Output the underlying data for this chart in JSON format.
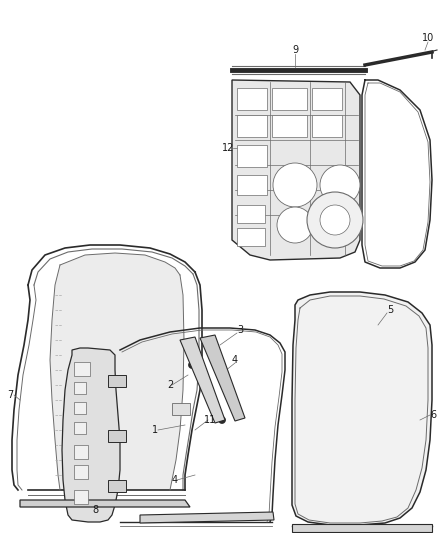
{
  "bg_color": "#ffffff",
  "line_color": "#6b6b6b",
  "dark_color": "#2a2a2a",
  "label_color": "#1a1a1a",
  "label_fontsize": 7,
  "fig_width": 4.38,
  "fig_height": 5.33,
  "dpi": 100
}
